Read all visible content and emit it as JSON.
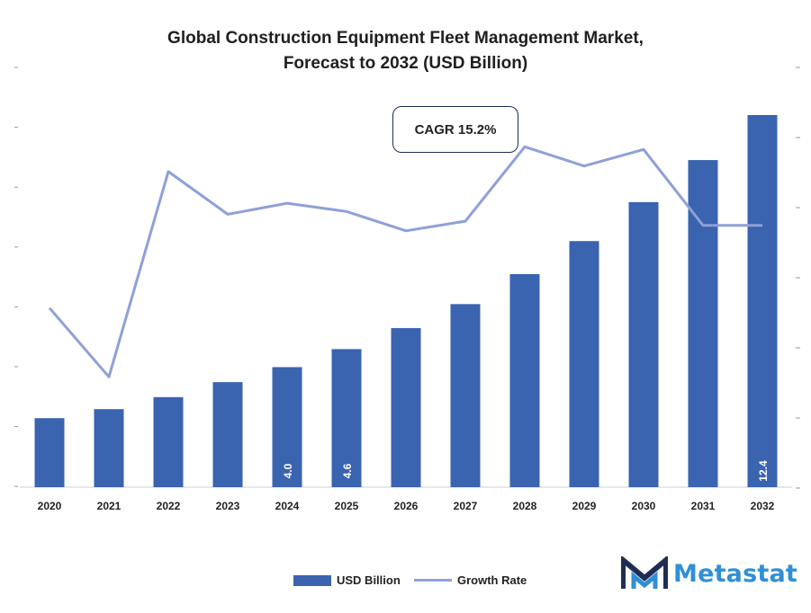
{
  "title_line1": "Global Construction Equipment Fleet Management Market,",
  "title_line2": "Forecast to 2032 (USD Billion)",
  "annotation": "CAGR 15.2%",
  "brand": "Metastat",
  "colors": {
    "bar": "#3a63b0",
    "line": "#8fa0d8",
    "logo_dark": "#1f2d55",
    "logo_blue": "#2f8fd6"
  },
  "chart_data": {
    "type": "bar",
    "categories": [
      "2020",
      "2021",
      "2022",
      "2023",
      "2024",
      "2025",
      "2026",
      "2027",
      "2028",
      "2029",
      "2030",
      "2031",
      "2032"
    ],
    "series": [
      {
        "name": "USD Billion",
        "type": "bar",
        "values": [
          2.3,
          2.6,
          3.0,
          3.5,
          4.0,
          4.6,
          5.3,
          6.1,
          7.1,
          8.2,
          9.5,
          10.9,
          12.4
        ]
      },
      {
        "name": "Growth Rate",
        "type": "line",
        "values": [
          13.0,
          8.0,
          22.9,
          19.8,
          20.6,
          20.0,
          18.6,
          19.3,
          24.7,
          23.3,
          24.5,
          19.0,
          19.0
        ]
      }
    ],
    "data_labels": {
      "4": "4.0",
      "5": "4.6",
      "12": "12.4"
    },
    "legend": [
      "USD Billion",
      "Growth Rate"
    ],
    "legend_position": "bottom",
    "ylim": [
      0,
      12.4
    ],
    "y2lim": [
      0,
      27
    ],
    "grid": false
  }
}
